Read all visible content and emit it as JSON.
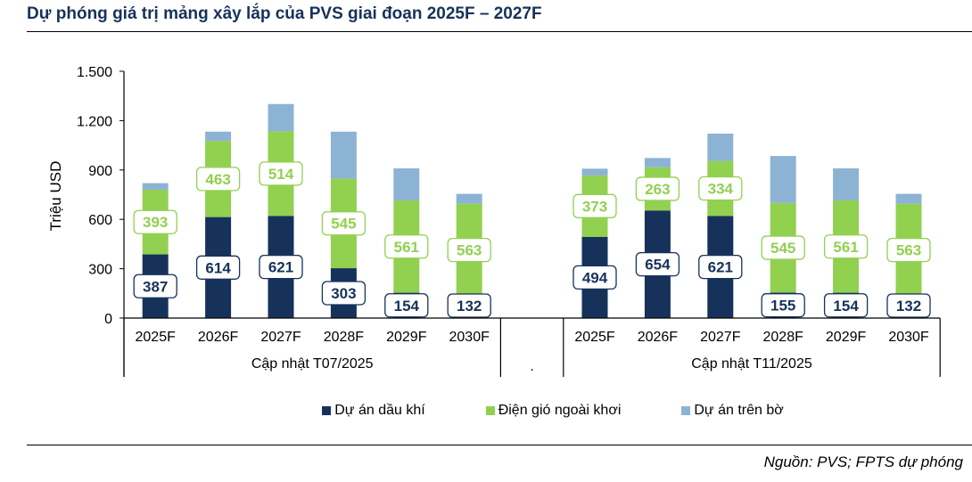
{
  "header": {
    "title": "Dự phóng giá trị mảng xây lắp của PVS giai đoạn 2025F – 2027F"
  },
  "footer": {
    "source": "Nguồn: PVS; FPTS dự phóng"
  },
  "colors": {
    "title": "#17325A",
    "oil_gas": "#17325A",
    "offshore_wind": "#92D050",
    "onshore": "#8DB3D4"
  },
  "chart_data": {
    "type": "bar",
    "stacked": true,
    "title": "Dự phóng giá trị mảng xây lắp của PVS giai đoạn 2025F – 2027F",
    "xlabel": "",
    "ylabel": "Triệu USD",
    "ylim": [
      0,
      1500
    ],
    "yticks": [
      0,
      300,
      600,
      900,
      1200,
      1500
    ],
    "ytick_labels": [
      "0",
      "300",
      "600",
      "900",
      "1.200",
      "1.500"
    ],
    "grid": false,
    "legend_position": "bottom",
    "groups": [
      {
        "label": "Cập nhật T07/2025",
        "categories": [
          "2025F",
          "2026F",
          "2027F",
          "2028F",
          "2029F",
          "2030F"
        ]
      },
      {
        "label": ".",
        "categories": [
          ""
        ]
      },
      {
        "label": "Cập nhật T11/2025",
        "categories": [
          "2025F",
          "2026F",
          "2027F",
          "2028F",
          "2029F",
          "2030F"
        ]
      }
    ],
    "categories": [
      "2025F",
      "2026F",
      "2027F",
      "2028F",
      "2029F",
      "2030F",
      "",
      "2025F",
      "2026F",
      "2027F",
      "2028F",
      "2029F",
      "2030F"
    ],
    "series": [
      {
        "name": "Dự án dầu khí",
        "color_key": "oil_gas",
        "labeled": true,
        "values": [
          387,
          614,
          621,
          303,
          154,
          132,
          null,
          494,
          654,
          621,
          155,
          154,
          132
        ]
      },
      {
        "name": "Điện gió ngoài khơi",
        "color_key": "offshore_wind",
        "labeled": true,
        "values": [
          393,
          463,
          514,
          545,
          561,
          563,
          null,
          373,
          263,
          334,
          545,
          561,
          563
        ]
      },
      {
        "name": "Dự án trên bờ",
        "color_key": "onshore",
        "labeled": false,
        "values": [
          40,
          56,
          166,
          285,
          195,
          60,
          null,
          41,
          56,
          166,
          285,
          195,
          60
        ]
      }
    ]
  }
}
